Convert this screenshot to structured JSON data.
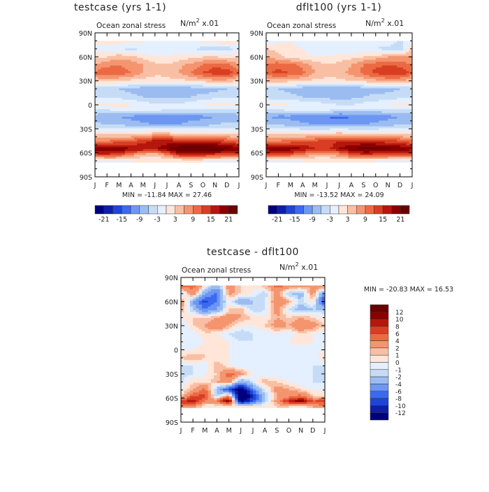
{
  "chart_data": [
    {
      "type": "heatmap",
      "title": "testcase (yrs 1-1)",
      "subtitle": "Ocean zonal stress",
      "units_label": "N/m",
      "units_exp": "2",
      "units_scale": "x.01",
      "y_ticks": [
        "90N",
        "60N",
        "30N",
        "0",
        "30S",
        "60S",
        "90S"
      ],
      "x_ticks": [
        "J",
        "F",
        "M",
        "A",
        "M",
        "J",
        "J",
        "A",
        "S",
        "O",
        "N",
        "D",
        "J"
      ],
      "stats": "MIN = -11.84  MAX =  27.46",
      "colorbar_labels": [
        "-21",
        "-15",
        "-9",
        "-3",
        "3",
        "9",
        "15",
        "21"
      ],
      "levels": [
        -21,
        -18,
        -15,
        -12,
        -9,
        -6,
        -3,
        0,
        3,
        6,
        9,
        12,
        15,
        18,
        21
      ],
      "data_rows": [
        {
          "lat": 80,
          "values": [
            1,
            1.5,
            2,
            1.5,
            0.5,
            -1,
            -2,
            -3,
            -1,
            1,
            2,
            3,
            1
          ]
        },
        {
          "lat": 70,
          "values": [
            -2,
            -2,
            -3,
            -4,
            -3,
            -3,
            -2,
            -2,
            -3,
            -4,
            -4,
            -5,
            -2
          ]
        },
        {
          "lat": 60,
          "values": [
            2,
            3,
            5,
            4,
            2,
            0,
            0,
            1,
            2,
            3,
            3,
            2,
            2
          ]
        },
        {
          "lat": 50,
          "values": [
            6,
            8,
            9,
            8,
            6,
            4,
            3,
            5,
            7,
            9,
            11,
            10,
            6
          ]
        },
        {
          "lat": 40,
          "values": [
            10,
            12,
            11,
            9,
            6,
            4,
            4,
            6,
            9,
            12,
            14,
            14,
            10
          ]
        },
        {
          "lat": 30,
          "values": [
            3,
            4,
            3,
            2,
            2,
            1,
            2,
            2,
            3,
            4,
            5,
            5,
            3
          ]
        },
        {
          "lat": 20,
          "values": [
            -5,
            -6,
            -6,
            -7,
            -8,
            -8,
            -9,
            -9,
            -8,
            -8,
            -7,
            -6,
            -5
          ]
        },
        {
          "lat": 10,
          "values": [
            -4,
            -4,
            -4,
            -5,
            -6,
            -7,
            -7,
            -7,
            -6,
            -5,
            -4,
            -4,
            -4
          ]
        },
        {
          "lat": 0,
          "values": [
            1,
            1,
            1,
            0,
            -1,
            -2,
            -2,
            -2,
            -1,
            0,
            1,
            1,
            1
          ]
        },
        {
          "lat": -5,
          "values": [
            -2,
            -2,
            -1,
            0,
            0,
            -1,
            -2,
            -2,
            -2,
            -2,
            -3,
            -3,
            -2
          ]
        },
        {
          "lat": -15,
          "values": [
            -8,
            -9,
            -9,
            -10,
            -11,
            -11,
            -11,
            -11,
            -10,
            -10,
            -9,
            -9,
            -8
          ]
        },
        {
          "lat": -25,
          "values": [
            -5,
            -6,
            -6,
            -7,
            -8,
            -9,
            -9,
            -9,
            -8,
            -7,
            -6,
            -5,
            -5
          ]
        },
        {
          "lat": -35,
          "values": [
            1,
            1,
            1,
            1,
            2,
            3,
            3,
            2,
            2,
            1,
            1,
            1,
            1
          ]
        },
        {
          "lat": -45,
          "values": [
            9,
            9,
            10,
            11,
            14,
            16,
            16,
            15,
            15,
            14,
            13,
            12,
            9
          ]
        },
        {
          "lat": -55,
          "values": [
            20,
            22,
            21,
            18,
            18,
            17,
            21,
            24,
            25,
            26,
            25,
            23,
            20
          ]
        },
        {
          "lat": -62,
          "values": [
            14,
            15,
            13,
            9,
            5,
            4,
            9,
            15,
            17,
            16,
            14,
            13,
            14
          ]
        },
        {
          "lat": -70,
          "values": [
            -3,
            -2,
            -1,
            0,
            0,
            0,
            0,
            0,
            0,
            0,
            -1,
            -2,
            -3
          ]
        }
      ]
    },
    {
      "type": "heatmap",
      "title": "dflt100 (yrs 1-1)",
      "subtitle": "Ocean zonal stress",
      "units_label": "N/m",
      "units_exp": "2",
      "units_scale": "x.01",
      "y_ticks": [
        "90N",
        "60N",
        "30N",
        "0",
        "30S",
        "60S",
        "90S"
      ],
      "x_ticks": [
        "J",
        "F",
        "M",
        "A",
        "M",
        "J",
        "J",
        "A",
        "S",
        "O",
        "N",
        "D",
        "J"
      ],
      "stats": "MIN = -13.52  MAX =  24.09",
      "colorbar_labels": [
        "-21",
        "-15",
        "-9",
        "-3",
        "3",
        "9",
        "15",
        "21"
      ],
      "levels": [
        -21,
        -18,
        -15,
        -12,
        -9,
        -6,
        -3,
        0,
        3,
        6,
        9,
        12,
        15,
        18,
        21
      ],
      "data_rows": [
        {
          "lat": 80,
          "values": [
            -2,
            -1,
            0,
            -1,
            -1,
            -2,
            -2,
            -3,
            -3,
            -2,
            -1,
            -3,
            -2
          ]
        },
        {
          "lat": 70,
          "values": [
            3,
            2,
            1,
            0,
            -2,
            -3,
            -3,
            -3,
            -3,
            -3,
            -4,
            -5,
            3
          ]
        },
        {
          "lat": 60,
          "values": [
            6,
            4,
            2,
            1,
            0,
            0,
            1,
            2,
            3,
            4,
            6,
            7,
            6
          ]
        },
        {
          "lat": 50,
          "values": [
            9,
            11,
            10,
            8,
            5,
            3,
            4,
            6,
            9,
            11,
            12,
            11,
            9
          ]
        },
        {
          "lat": 40,
          "values": [
            11,
            13,
            12,
            10,
            6,
            4,
            5,
            7,
            10,
            13,
            15,
            15,
            11
          ]
        },
        {
          "lat": 30,
          "values": [
            4,
            5,
            4,
            3,
            2,
            2,
            2,
            3,
            4,
            5,
            6,
            6,
            4
          ]
        },
        {
          "lat": 20,
          "values": [
            -5,
            -6,
            -7,
            -8,
            -9,
            -9,
            -9,
            -9,
            -8,
            -8,
            -7,
            -6,
            -5
          ]
        },
        {
          "lat": 10,
          "values": [
            -4,
            -5,
            -5,
            -6,
            -7,
            -7,
            -8,
            -7,
            -6,
            -5,
            -5,
            -4,
            -4
          ]
        },
        {
          "lat": 0,
          "values": [
            1,
            1,
            0,
            0,
            -1,
            -2,
            -3,
            -3,
            -2,
            -1,
            0,
            1,
            1
          ]
        },
        {
          "lat": -5,
          "values": [
            -2,
            -2,
            -1,
            0,
            0,
            -1,
            -2,
            -3,
            -3,
            -3,
            -3,
            -3,
            -2
          ]
        },
        {
          "lat": -15,
          "values": [
            -9,
            -10,
            -10,
            -11,
            -12,
            -12,
            -13,
            -12,
            -11,
            -11,
            -10,
            -9,
            -9
          ]
        },
        {
          "lat": -25,
          "values": [
            -6,
            -6,
            -7,
            -8,
            -9,
            -9,
            -10,
            -9,
            -9,
            -8,
            -7,
            -6,
            -6
          ]
        },
        {
          "lat": -35,
          "values": [
            1,
            1,
            1,
            1,
            1,
            2,
            3,
            2,
            2,
            1,
            1,
            1,
            1
          ]
        },
        {
          "lat": -45,
          "values": [
            9,
            9,
            10,
            11,
            12,
            13,
            15,
            15,
            15,
            14,
            13,
            12,
            9
          ]
        },
        {
          "lat": -55,
          "values": [
            19,
            20,
            20,
            18,
            15,
            14,
            18,
            21,
            22,
            23,
            22,
            21,
            19
          ]
        },
        {
          "lat": -62,
          "values": [
            13,
            14,
            12,
            9,
            6,
            5,
            8,
            13,
            15,
            14,
            13,
            12,
            13
          ]
        },
        {
          "lat": -70,
          "values": [
            -2,
            -2,
            -1,
            0,
            0,
            0,
            0,
            0,
            0,
            0,
            -1,
            -1,
            -2
          ]
        }
      ]
    },
    {
      "type": "heatmap",
      "title": "testcase - dflt100",
      "subtitle": "Ocean zonal stress",
      "units_label": "N/m",
      "units_exp": "2",
      "units_scale": "x.01",
      "y_ticks": [
        "90N",
        "60N",
        "30N",
        "0",
        "30S",
        "60S",
        "90S"
      ],
      "x_ticks": [
        "J",
        "F",
        "M",
        "A",
        "M",
        "J",
        "J",
        "A",
        "S",
        "O",
        "N",
        "D",
        "J"
      ],
      "stats": "MIN = -20.83  MAX =  16.53",
      "colorbar_labels": [
        "12",
        "10",
        "8",
        "6",
        "4",
        "2",
        "1",
        "0",
        "-1",
        "-2",
        "-4",
        "-6",
        "-8",
        "-10",
        "-12"
      ],
      "levels": [
        -12,
        -10,
        -8,
        -6,
        -4,
        -2,
        -1,
        0,
        1,
        2,
        4,
        6,
        8,
        10,
        12
      ],
      "data_rows": [
        {
          "lat": 80,
          "values": [
            6,
            5,
            1,
            -3,
            3,
            1,
            0,
            2,
            5,
            4,
            3,
            2,
            5
          ]
        },
        {
          "lat": 70,
          "values": [
            -3,
            4,
            -4,
            -7,
            3,
            1,
            0,
            -2,
            3,
            -2,
            -3,
            3,
            -5
          ]
        },
        {
          "lat": 60,
          "values": [
            4,
            -4,
            -9,
            -6,
            0,
            -4,
            -2,
            -1,
            4,
            2,
            -2,
            1,
            -10
          ]
        },
        {
          "lat": 50,
          "values": [
            2,
            -2,
            -6,
            -4,
            1,
            2,
            -2,
            -1,
            3,
            -1,
            -3,
            -2,
            -2
          ]
        },
        {
          "lat": 40,
          "values": [
            0,
            1,
            1,
            2,
            3,
            2,
            1,
            0,
            2,
            1,
            2,
            1,
            0
          ]
        },
        {
          "lat": 30,
          "values": [
            -1,
            1,
            2,
            4,
            2,
            0,
            0,
            1,
            3,
            2,
            4,
            3,
            1
          ]
        },
        {
          "lat": 20,
          "values": [
            -1,
            -1,
            1,
            0,
            -1,
            -2,
            -1,
            -1,
            0,
            -1,
            1,
            0,
            -1
          ]
        },
        {
          "lat": 10,
          "values": [
            0,
            -1,
            0,
            1,
            0,
            -1,
            -1,
            -1,
            0,
            0,
            1,
            0,
            0
          ]
        },
        {
          "lat": 0,
          "values": [
            0,
            0,
            1,
            0,
            0,
            -1,
            -1,
            -1,
            0,
            -1,
            -1,
            -1,
            0
          ]
        },
        {
          "lat": -10,
          "values": [
            1,
            2,
            1,
            0,
            0,
            -1,
            -1,
            -1,
            0,
            -1,
            -1,
            -1,
            1
          ]
        },
        {
          "lat": -20,
          "values": [
            -1,
            -1,
            -1,
            2,
            0,
            -1,
            -1,
            -1,
            -1,
            -1,
            -1,
            -1,
            -1
          ]
        },
        {
          "lat": -30,
          "values": [
            -2,
            -1,
            0,
            1,
            5,
            3,
            0,
            -1,
            -1,
            -1,
            -1,
            -1,
            -2
          ]
        },
        {
          "lat": -40,
          "values": [
            -1,
            1,
            0,
            2,
            3,
            -4,
            -1,
            2,
            1,
            0,
            -1,
            -1,
            -1
          ]
        },
        {
          "lat": -50,
          "values": [
            0,
            2,
            5,
            -3,
            -9,
            -15,
            -6,
            -1,
            3,
            2,
            1,
            0,
            0
          ]
        },
        {
          "lat": -58,
          "values": [
            1,
            6,
            7,
            -2,
            5,
            -18,
            -10,
            -2,
            2,
            3,
            5,
            1,
            1
          ]
        },
        {
          "lat": -64,
          "values": [
            7,
            10,
            3,
            4,
            12,
            -14,
            -8,
            -2,
            3,
            9,
            12,
            6,
            7
          ]
        },
        {
          "lat": -70,
          "values": [
            4,
            3,
            0,
            0,
            0,
            0,
            0,
            0,
            1,
            1,
            0,
            2,
            4
          ]
        }
      ]
    }
  ],
  "palettes": {
    "main": [
      "#00007f",
      "#0d1fa8",
      "#1f45d6",
      "#3b6af0",
      "#6d97f2",
      "#9bbcf0",
      "#c6dcf6",
      "#e4efff",
      "#ffe6d8",
      "#f9bfa4",
      "#f4956f",
      "#eb6a44",
      "#d93e22",
      "#b5170d",
      "#8a0000",
      "#6a0000"
    ],
    "diff": [
      "#00007f",
      "#0d1fa8",
      "#1f45d6",
      "#3b6af0",
      "#6d97f2",
      "#9bbcf0",
      "#c6dcf6",
      "#e4efff",
      "#ffe6d8",
      "#f9bfa4",
      "#f4956f",
      "#eb6a44",
      "#d93e22",
      "#b5170d",
      "#8a0000",
      "#6a0000"
    ]
  }
}
